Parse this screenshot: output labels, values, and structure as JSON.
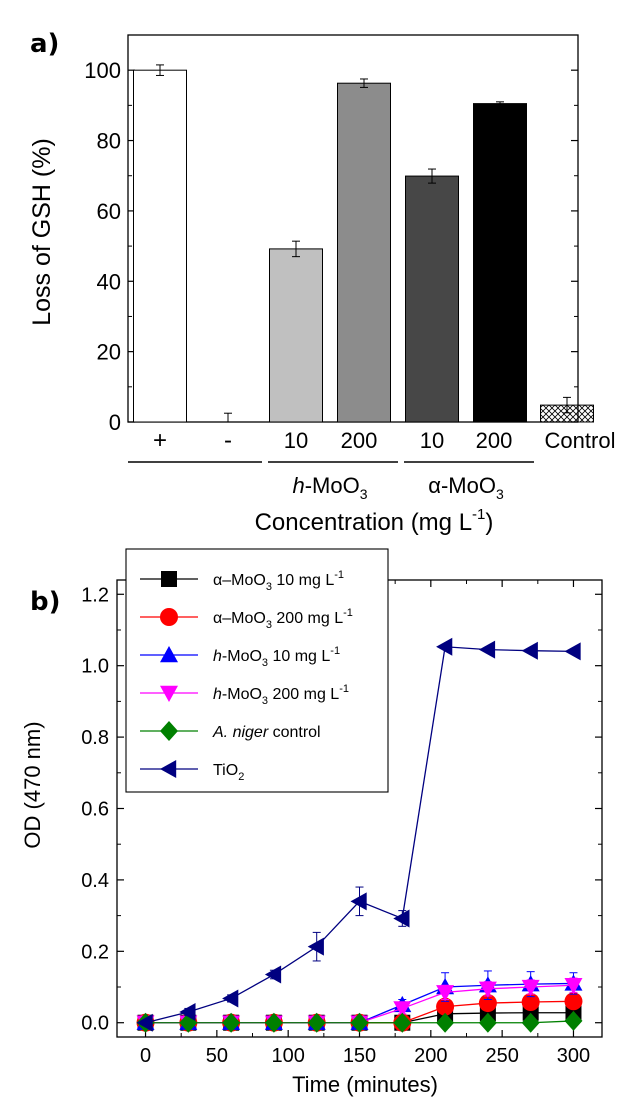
{
  "chart_data": [
    {
      "panel_label": "a)",
      "type": "bar",
      "categories": [
        "+",
        "-",
        "10",
        "200",
        "10",
        "200",
        "Control"
      ],
      "values": [
        100,
        0.5,
        49.2,
        96.3,
        69.9,
        90.5,
        4.8
      ],
      "errors": [
        1.5,
        2.0,
        2.2,
        1.2,
        2.0,
        0.5,
        2.2
      ],
      "fills": [
        "#ffffff",
        "#ffffff",
        "#c0c0c0",
        "#8c8c8c",
        "#474747",
        "#000000",
        "hatch"
      ],
      "groups": [
        {
          "label_main": "h",
          "label_rest": "-MoO",
          "label_sub": "3"
        },
        {
          "label_main": "α",
          "label_rest": "-MoO",
          "label_sub": "3"
        }
      ],
      "xlabel_main": "Concentration (mg L",
      "xlabel_sup": "-1",
      "xlabel_end": ")",
      "ylabel": "Loss of GSH (%)",
      "ylim": [
        0,
        110
      ],
      "yticks": [
        "0",
        "20",
        "40",
        "60",
        "80",
        "100"
      ]
    },
    {
      "panel_label": "b)",
      "type": "line",
      "x": [
        0,
        30,
        60,
        90,
        120,
        150,
        180,
        210,
        240,
        270,
        300
      ],
      "xticks": [
        "0",
        "50",
        "100",
        "150",
        "200",
        "250",
        "300"
      ],
      "yticks": [
        "0.0",
        "0.2",
        "0.4",
        "0.6",
        "0.8",
        "1.0",
        "1.2"
      ],
      "xlim": [
        -20,
        320
      ],
      "ylim": [
        -0.04,
        1.24
      ],
      "xlabel": "Time (minutes)",
      "ylabel": "OD (470 nm)",
      "legend": "top-left",
      "series": [
        {
          "legend_pre": "α–MoO",
          "legend_sub": "3",
          "legend_post": " 10 mg L",
          "legend_sup": "-1",
          "italic_pre": false,
          "color": "#000000",
          "marker": "square",
          "values": [
            0,
            0,
            0,
            0,
            0,
            0,
            0,
            0.025,
            0.027,
            0.028,
            0.028
          ],
          "errors": [
            0,
            0,
            0,
            0,
            0,
            0,
            0,
            0.01,
            0.01,
            0.01,
            0.01
          ]
        },
        {
          "legend_pre": "α–MoO",
          "legend_sub": "3",
          "legend_post": " 200 mg L",
          "legend_sup": "-1",
          "italic_pre": false,
          "color": "#ff0000",
          "marker": "circle",
          "values": [
            0,
            0,
            0,
            0,
            0,
            0,
            0,
            0.045,
            0.055,
            0.058,
            0.06
          ],
          "errors": [
            0,
            0,
            0,
            0,
            0,
            0,
            0,
            0.015,
            0.015,
            0.02,
            0.02
          ]
        },
        {
          "legend_pre": "h",
          "legend_mid": "-MoO",
          "legend_sub": "3",
          "legend_post": " 10 mg L",
          "legend_sup": "-1",
          "italic_pre": true,
          "color": "#0000ff",
          "marker": "triangle-up",
          "values": [
            0,
            0,
            0,
            0,
            0,
            0,
            0.05,
            0.1,
            0.105,
            0.108,
            0.11
          ],
          "errors": [
            0,
            0,
            0,
            0,
            0,
            0,
            0.015,
            0.04,
            0.04,
            0.035,
            0.03
          ]
        },
        {
          "legend_pre": "h",
          "legend_mid": "-MoO",
          "legend_sub": "3",
          "legend_post": " 200 mg L",
          "legend_sup": "-1",
          "italic_pre": true,
          "color": "#ff00ff",
          "marker": "triangle-down",
          "values": [
            0,
            0,
            0,
            0,
            0,
            0,
            0.04,
            0.085,
            0.095,
            0.1,
            0.105
          ],
          "errors": [
            0,
            0,
            0,
            0,
            0,
            0,
            0.015,
            0.02,
            0.02,
            0.02,
            0.02
          ]
        },
        {
          "legend_pre": "A. niger",
          "legend_post": " control",
          "italic_pre": true,
          "color": "#008000",
          "marker": "diamond",
          "values": [
            0,
            0,
            0,
            0,
            0,
            0,
            0,
            0,
            0,
            0,
            0.005
          ],
          "errors": [
            0,
            0,
            0,
            0,
            0,
            0,
            0,
            0,
            0,
            0,
            0
          ]
        },
        {
          "legend_pre": "TiO",
          "legend_sub": "2",
          "italic_pre": false,
          "color": "#000080",
          "marker": "triangle-left",
          "values": [
            0,
            0.03,
            0.068,
            0.135,
            0.213,
            0.34,
            0.292,
            1.053,
            1.045,
            1.042,
            1.04
          ],
          "errors": [
            0,
            0.01,
            0.01,
            0.012,
            0.04,
            0.04,
            0.022,
            0.005,
            0.005,
            0.005,
            0.005
          ]
        }
      ]
    }
  ]
}
